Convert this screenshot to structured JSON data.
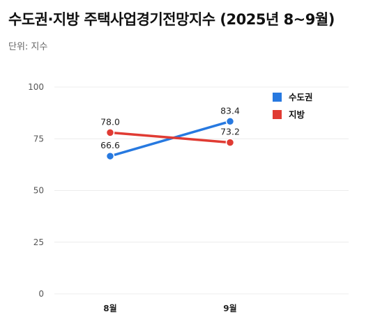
{
  "title": "수도권·지방 주택사업경기전망지수 (2025년 8~9월)",
  "subtitle": "단위: 지수",
  "chart_data": {
    "type": "line",
    "title": "수도권·지방 주택사업경기전망지수 (2025년 8~9월)",
    "ylabel": "단위: 지수",
    "categories": [
      "8월",
      "9월"
    ],
    "ylim": [
      0,
      100
    ],
    "yticks": [
      0,
      25,
      50,
      75,
      100
    ],
    "grid": true,
    "legend": "top-right",
    "series": [
      {
        "name": "수도권",
        "values": [
          66.6,
          83.4
        ],
        "labels": [
          "66.6",
          "83.4"
        ],
        "color": "#2779E0"
      },
      {
        "name": "지방",
        "values": [
          78.0,
          73.2
        ],
        "labels": [
          "78.0",
          "73.2"
        ],
        "color": "#E03B33"
      }
    ]
  }
}
